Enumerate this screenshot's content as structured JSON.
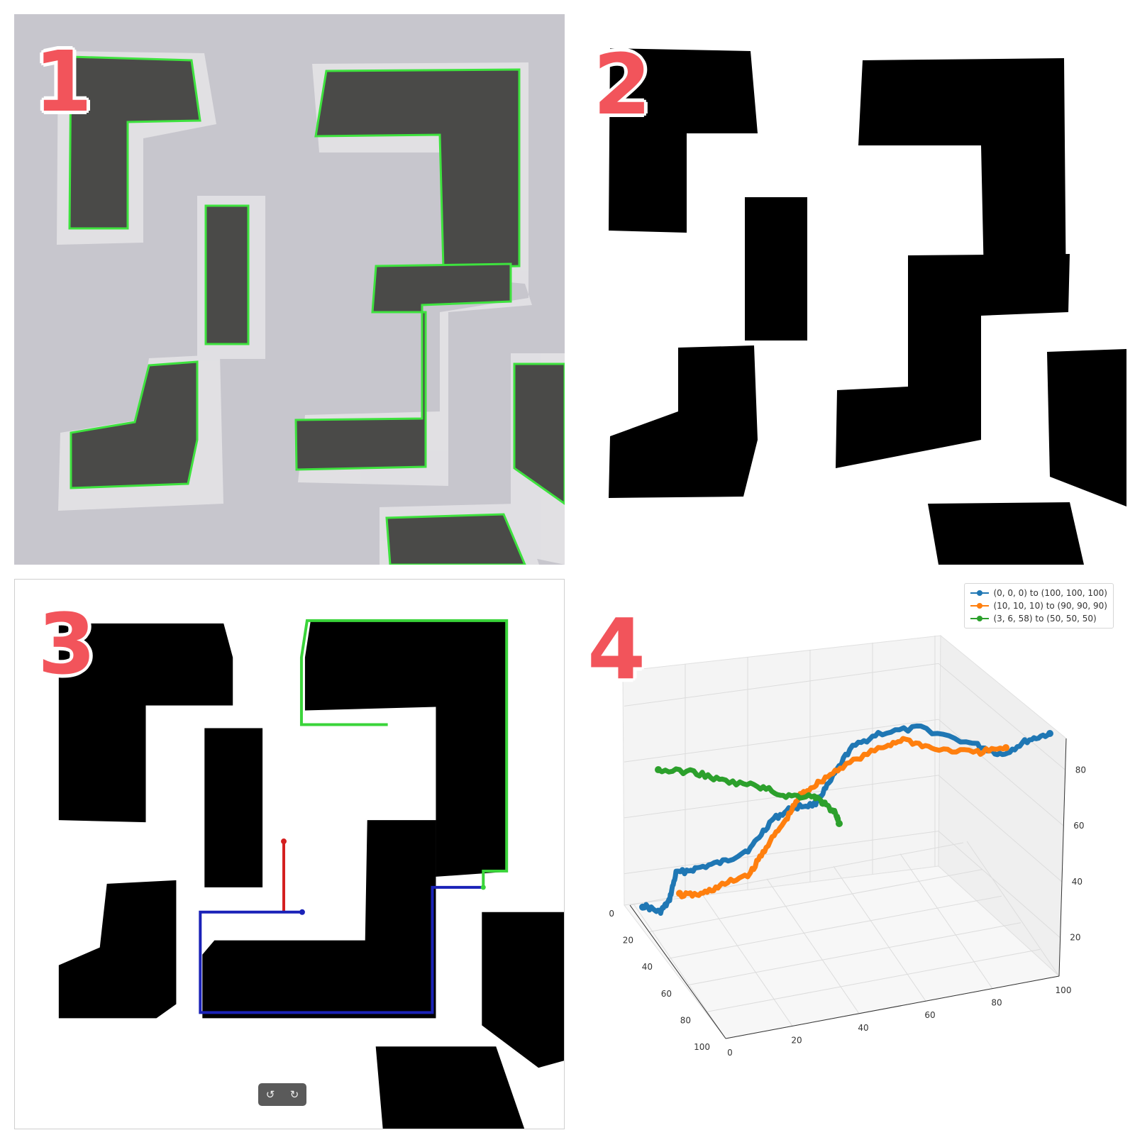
{
  "panels": [
    {
      "label": "1"
    },
    {
      "label": "2"
    },
    {
      "label": "3"
    },
    {
      "label": "4"
    }
  ],
  "colors": {
    "label": "#f2545b",
    "contour": "#3fe03f",
    "obstacle_photo": "#4a4a48",
    "path_red": "#d42020",
    "path_blue": "#1a22b8",
    "path_green": "#3ad43a"
  },
  "viewer_controls": {
    "rotate_left_icon": "↺",
    "rotate_right_icon": "↻"
  },
  "chart_data": {
    "type": "line3d",
    "legend_position": "top-right",
    "grid": true,
    "series": [
      {
        "name": "(0, 0, 0) to (100, 100, 100)",
        "color": "#1f77b4"
      },
      {
        "name": "(10, 10, 10) to (90, 90, 90)",
        "color": "#ff7f0e"
      },
      {
        "name": "(3, 6, 58) to (50, 50, 50)",
        "color": "#2ca02c"
      }
    ],
    "x_ticks": [
      "0",
      "20",
      "40",
      "60",
      "80",
      "100"
    ],
    "y_ticks": [
      "0",
      "20",
      "40",
      "60",
      "80",
      "100"
    ],
    "z_ticks": [
      "20",
      "40",
      "60",
      "80"
    ]
  }
}
